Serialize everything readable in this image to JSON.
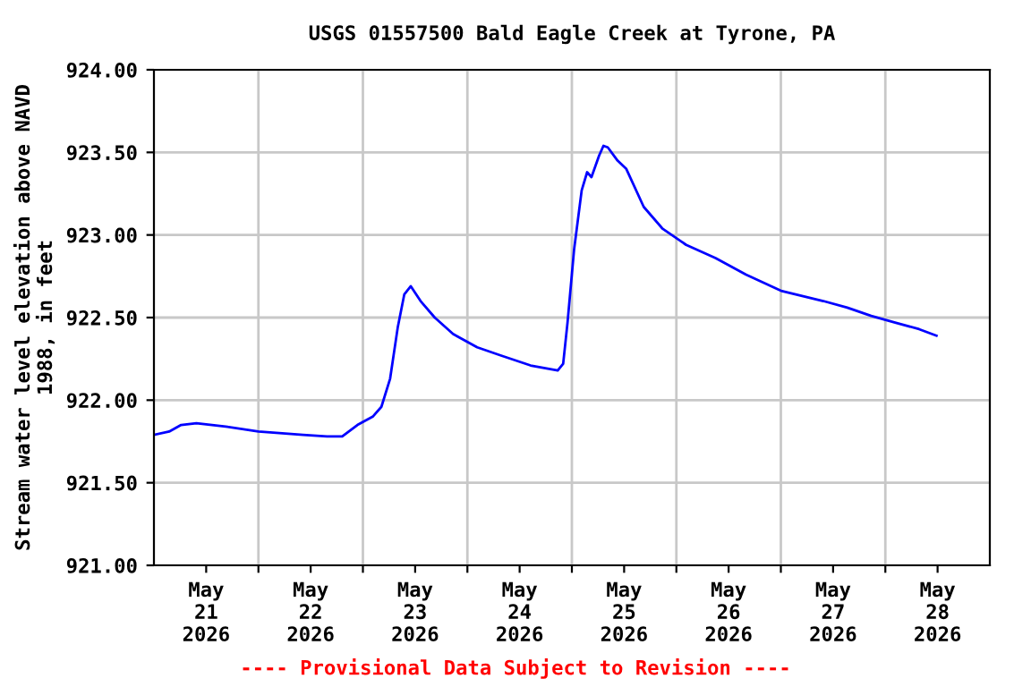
{
  "chart_data": {
    "type": "line",
    "title": "USGS 01557500 Bald Eagle Creek at Tyrone, PA",
    "ylabel": "Stream water level elevation above NAVD\n1988, in feet",
    "annotations": [
      "---- Provisional Data Subject to Revision ----"
    ],
    "x": [
      "2026-05-21T00:00",
      "2026-05-21T03:30",
      "2026-05-21T06:15",
      "2026-05-21T09:45",
      "2026-05-21T16:30",
      "2026-05-22T00:00",
      "2026-05-22T10:15",
      "2026-05-22T15:45",
      "2026-05-22T19:15",
      "2026-05-22T22:45",
      "2026-05-23T02:15",
      "2026-05-23T04:15",
      "2026-05-23T06:15",
      "2026-05-23T08:00",
      "2026-05-23T09:30",
      "2026-05-23T11:00",
      "2026-05-23T13:15",
      "2026-05-23T16:30",
      "2026-05-23T20:45",
      "2026-05-24T02:15",
      "2026-05-24T07:45",
      "2026-05-24T14:30",
      "2026-05-24T20:45",
      "2026-05-24T22:00",
      "2026-05-24T23:00",
      "2026-05-25T00:30",
      "2026-05-25T02:15",
      "2026-05-25T03:30",
      "2026-05-25T04:30",
      "2026-05-25T06:15",
      "2026-05-25T07:15",
      "2026-05-25T08:15",
      "2026-05-25T10:30",
      "2026-05-25T12:30",
      "2026-05-25T16:30",
      "2026-05-25T20:45",
      "2026-05-26T02:15",
      "2026-05-26T09:00",
      "2026-05-26T16:00",
      "2026-05-27T00:15",
      "2026-05-27T09:45",
      "2026-05-27T15:15",
      "2026-05-27T20:45",
      "2026-05-28T02:15",
      "2026-05-28T07:45",
      "2026-05-28T11:45"
    ],
    "series": [
      {
        "color": "#0000ff",
        "values": [
          921.79,
          921.81,
          921.85,
          921.86,
          921.84,
          921.81,
          921.79,
          921.78,
          921.78,
          921.85,
          921.9,
          921.96,
          922.13,
          922.44,
          922.64,
          922.69,
          922.6,
          922.5,
          922.4,
          922.32,
          922.27,
          922.21,
          922.18,
          922.22,
          922.47,
          922.91,
          923.27,
          923.38,
          923.35,
          923.48,
          923.54,
          923.53,
          923.45,
          923.4,
          923.17,
          923.04,
          922.94,
          922.86,
          922.76,
          922.66,
          922.6,
          922.56,
          922.51,
          922.47,
          922.43,
          922.39
        ]
      }
    ],
    "xlim": [
      "2026-05-21T00:00",
      "2026-05-29T00:00"
    ],
    "xticks": [
      {
        "value": "2026-05-21T12:00",
        "label": "May\n21\n2026"
      },
      {
        "value": "2026-05-22T00:00",
        "label": null
      },
      {
        "value": "2026-05-22T12:00",
        "label": "May\n22\n2026"
      },
      {
        "value": "2026-05-23T00:00",
        "label": null
      },
      {
        "value": "2026-05-23T12:00",
        "label": "May\n23\n2026"
      },
      {
        "value": "2026-05-24T00:00",
        "label": null
      },
      {
        "value": "2026-05-24T12:00",
        "label": "May\n24\n2026"
      },
      {
        "value": "2026-05-25T00:00",
        "label": null
      },
      {
        "value": "2026-05-25T12:00",
        "label": "May\n25\n2026"
      },
      {
        "value": "2026-05-26T00:00",
        "label": null
      },
      {
        "value": "2026-05-26T12:00",
        "label": "May\n26\n2026"
      },
      {
        "value": "2026-05-27T00:00",
        "label": null
      },
      {
        "value": "2026-05-27T12:00",
        "label": "May\n27\n2026"
      },
      {
        "value": "2026-05-28T00:00",
        "label": null
      },
      {
        "value": "2026-05-28T12:00",
        "label": "May\n28\n2026"
      }
    ],
    "ylim": [
      921.0,
      924.0
    ],
    "yticks": [
      {
        "value": 921.0,
        "label": "921.00"
      },
      {
        "value": 921.5,
        "label": "921.50"
      },
      {
        "value": 922.0,
        "label": "922.00"
      },
      {
        "value": 922.5,
        "label": "922.50"
      },
      {
        "value": 923.0,
        "label": "923.00"
      },
      {
        "value": 923.5,
        "label": "923.50"
      },
      {
        "value": 924.0,
        "label": "924.00"
      }
    ],
    "grid": true,
    "marker": "none",
    "line_style": "solid"
  }
}
